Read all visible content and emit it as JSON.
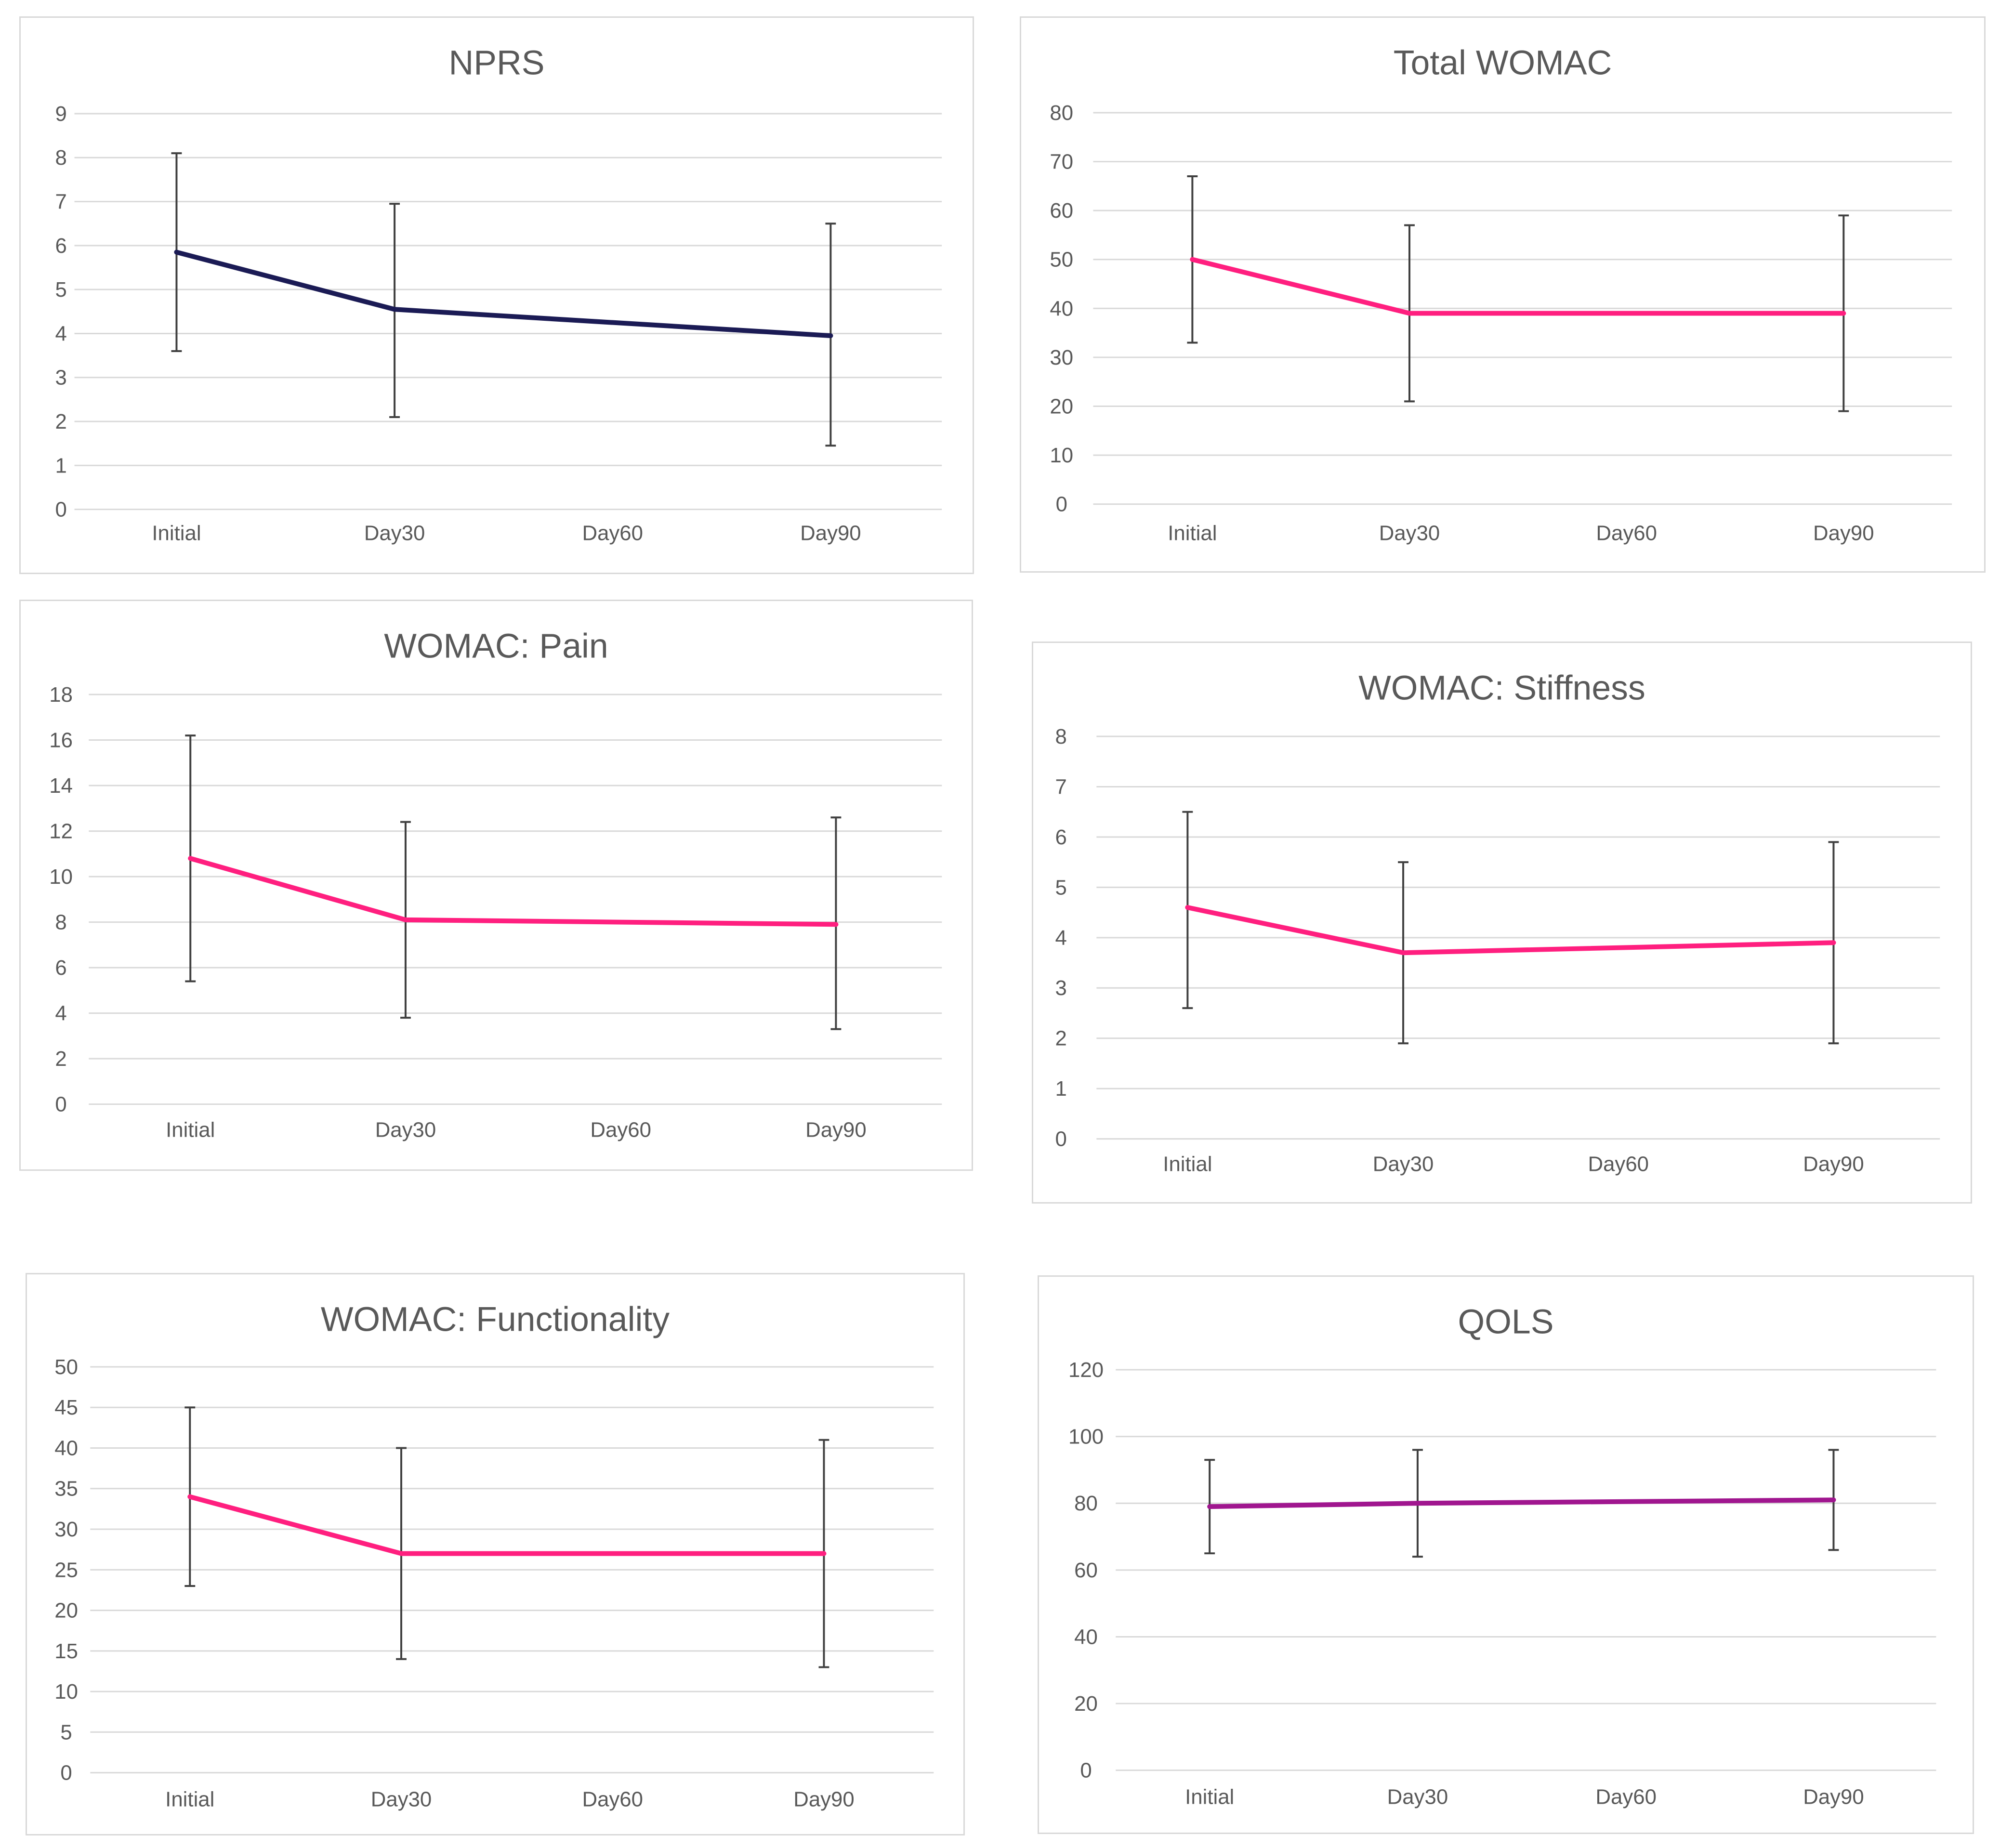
{
  "chart_data": [
    {
      "type": "line",
      "title": "NPRS",
      "categories": [
        "Initial",
        "Day30",
        "Day60",
        "Day90"
      ],
      "ylim": [
        0,
        9
      ],
      "ystep": 1,
      "yticks": [
        "0",
        "1",
        "2",
        "3",
        "4",
        "5",
        "6",
        "7",
        "8",
        "9"
      ],
      "color": "#1b1b55",
      "series": [
        {
          "name": "NPRS",
          "points": [
            {
              "category": "Initial",
              "mean": 5.85,
              "low": 3.6,
              "high": 8.1
            },
            {
              "category": "Day30",
              "mean": 4.55,
              "low": 2.1,
              "high": 6.95
            },
            {
              "category": "Day90",
              "mean": 3.95,
              "low": 1.45,
              "high": 6.5
            }
          ]
        }
      ]
    },
    {
      "type": "line",
      "title": "Total WOMAC",
      "categories": [
        "Initial",
        "Day30",
        "Day60",
        "Day90"
      ],
      "ylim": [
        0,
        80
      ],
      "ystep": 10,
      "yticks": [
        "0",
        "10",
        "20",
        "30",
        "40",
        "50",
        "60",
        "70",
        "80"
      ],
      "color": "#ff1f7f",
      "series": [
        {
          "name": "Total WOMAC",
          "points": [
            {
              "category": "Initial",
              "mean": 50,
              "low": 33,
              "high": 67
            },
            {
              "category": "Day30",
              "mean": 39,
              "low": 21,
              "high": 57
            },
            {
              "category": "Day90",
              "mean": 39,
              "low": 19,
              "high": 59
            }
          ]
        }
      ]
    },
    {
      "type": "line",
      "title": "WOMAC: Pain",
      "categories": [
        "Initial",
        "Day30",
        "Day60",
        "Day90"
      ],
      "ylim": [
        0,
        18
      ],
      "ystep": 2,
      "yticks": [
        "0",
        "2",
        "4",
        "6",
        "8",
        "10",
        "12",
        "14",
        "16",
        "18"
      ],
      "color": "#ff1f7f",
      "series": [
        {
          "name": "WOMAC: Pain",
          "points": [
            {
              "category": "Initial",
              "mean": 10.8,
              "low": 5.4,
              "high": 16.2
            },
            {
              "category": "Day30",
              "mean": 8.1,
              "low": 3.8,
              "high": 12.4
            },
            {
              "category": "Day90",
              "mean": 7.9,
              "low": 3.3,
              "high": 12.6
            }
          ]
        }
      ]
    },
    {
      "type": "line",
      "title": "WOMAC: Stiffness",
      "categories": [
        "Initial",
        "Day30",
        "Day60",
        "Day90"
      ],
      "ylim": [
        0,
        8
      ],
      "ystep": 1,
      "yticks": [
        "0",
        "1",
        "2",
        "3",
        "4",
        "5",
        "6",
        "7",
        "8"
      ],
      "color": "#ff1f7f",
      "series": [
        {
          "name": "WOMAC: Stiffness",
          "points": [
            {
              "category": "Initial",
              "mean": 4.6,
              "low": 2.6,
              "high": 6.5
            },
            {
              "category": "Day30",
              "mean": 3.7,
              "low": 1.9,
              "high": 5.5
            },
            {
              "category": "Day90",
              "mean": 3.9,
              "low": 1.9,
              "high": 5.9
            }
          ]
        }
      ]
    },
    {
      "type": "line",
      "title": "WOMAC: Functionality",
      "categories": [
        "Initial",
        "Day30",
        "Day60",
        "Day90"
      ],
      "ylim": [
        0,
        50
      ],
      "ystep": 5,
      "yticks": [
        "0",
        "5",
        "10",
        "15",
        "20",
        "25",
        "30",
        "35",
        "40",
        "45",
        "50"
      ],
      "color": "#ff1f7f",
      "series": [
        {
          "name": "WOMAC: Functionality",
          "points": [
            {
              "category": "Initial",
              "mean": 34,
              "low": 23,
              "high": 45
            },
            {
              "category": "Day30",
              "mean": 27,
              "low": 14,
              "high": 40
            },
            {
              "category": "Day90",
              "mean": 27,
              "low": 13,
              "high": 41
            }
          ]
        }
      ]
    },
    {
      "type": "line",
      "title": "QOLS",
      "categories": [
        "Initial",
        "Day30",
        "Day60",
        "Day90"
      ],
      "ylim": [
        0,
        120
      ],
      "ystep": 20,
      "yticks": [
        "0",
        "20",
        "40",
        "60",
        "80",
        "100",
        "120"
      ],
      "color": "#a0168f",
      "series": [
        {
          "name": "QOLS",
          "points": [
            {
              "category": "Initial",
              "mean": 79,
              "low": 65,
              "high": 93
            },
            {
              "category": "Day30",
              "mean": 80,
              "low": 64,
              "high": 96
            },
            {
              "category": "Day90",
              "mean": 81,
              "low": 66,
              "high": 96
            }
          ]
        }
      ]
    }
  ]
}
